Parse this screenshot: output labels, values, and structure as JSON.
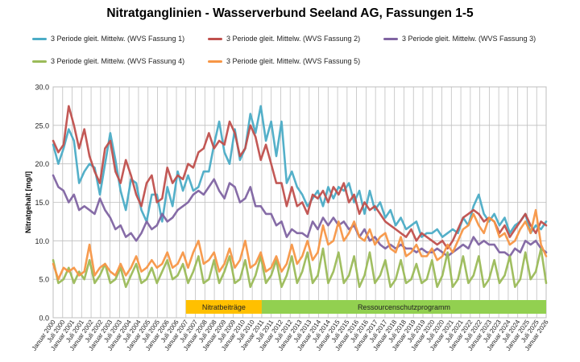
{
  "chart_data": {
    "type": "line",
    "title": "Nitratganglinien - Wasserverbund Seeland AG, Fassungen 1-5",
    "ylabel": "Nitratgehalt [mg/l]",
    "ylim": [
      0,
      30
    ],
    "yticks": [
      "0.0",
      "5.0",
      "10.0",
      "15.0",
      "20.0",
      "25.0",
      "30.0"
    ],
    "grid": true,
    "legend_position": "top",
    "xlabels": [
      "Januar 2000",
      "Juli 2000",
      "Januar 2001",
      "Juli 2001",
      "Januar 2002",
      "Juli 2002",
      "Januar 2003",
      "Juli 2003",
      "Januar 2004",
      "Juli 2004",
      "Januar 2005",
      "Juli 2005",
      "Januar 2006",
      "Juli 2006",
      "Januar 2007",
      "Juli 2007",
      "Januar 2008",
      "Juli 2008",
      "Januar 2009",
      "Juli 2009",
      "Januar 2010",
      "Juli 2010",
      "Januar 2011",
      "Juli 2011",
      "Januar 2012",
      "Juli 2012",
      "Januar 2013",
      "Juli 2013",
      "Januar 2014",
      "Juli 2014",
      "Januar 2015",
      "Juli 2015",
      "Januar 2016",
      "Juli 2016",
      "Januar 2017",
      "Juli 2017",
      "Januar 2018",
      "Juli 2018",
      "Januar 2019",
      "Juli 2019",
      "Januar 2020",
      "Juli 2020",
      "Januar 2021",
      "Juli 2021",
      "Januar 2022",
      "Juli 2022",
      "Januar 2023",
      "Juli 2023",
      "Januar 2024",
      "Juli 2024",
      "Januar 2025",
      "Juli 2025",
      "Januar 2026"
    ],
    "bands": [
      {
        "label": "Nitratbeiträge",
        "from": "Januar 2007",
        "to": "Januar 2011",
        "color": "#ffc000"
      },
      {
        "label": "Ressourcenschutzprogramm",
        "from": "Januar 2011",
        "to": "Januar 2026",
        "color": "#92d050"
      }
    ],
    "series": [
      {
        "name": "3 Periode gleit. Mittelw. (WVS Fassung 1)",
        "color": "#4bacc6",
        "values": [
          22.5,
          20.0,
          22.0,
          24.5,
          23.0,
          17.5,
          19.0,
          20.0,
          19.5,
          16.0,
          20.0,
          24.0,
          20.5,
          16.5,
          14.0,
          18.0,
          17.5,
          14.0,
          12.5,
          16.0,
          16.0,
          12.5,
          17.0,
          14.5,
          19.0,
          16.5,
          18.5,
          16.5,
          17.0,
          19.0,
          19.0,
          22.5,
          25.5,
          21.5,
          20.0,
          24.5,
          20.5,
          22.0,
          26.5,
          24.0,
          27.5,
          23.0,
          25.5,
          21.0,
          25.5,
          17.5,
          19.0,
          17.0,
          16.0,
          14.5,
          15.5,
          16.5,
          14.5,
          17.0,
          15.5,
          17.0,
          16.5,
          17.5,
          15.0,
          16.5,
          13.5,
          16.5,
          14.0,
          15.0,
          13.0,
          14.0,
          12.0,
          13.0,
          11.5,
          12.0,
          12.5,
          10.5,
          11.0,
          11.0,
          11.5,
          10.5,
          11.0,
          11.5,
          11.0,
          13.0,
          12.0,
          14.5,
          16.0,
          13.5,
          12.5,
          13.5,
          12.0,
          13.0,
          11.0,
          12.0,
          12.5,
          13.5,
          11.0,
          12.0,
          11.5,
          12.5
        ]
      },
      {
        "name": "3 Periode gleit. Mittelw. (WVS Fassung 2)",
        "color": "#c0504d",
        "values": [
          23.0,
          21.5,
          22.5,
          27.5,
          25.0,
          22.0,
          24.5,
          21.0,
          19.0,
          17.5,
          22.0,
          23.0,
          19.0,
          17.5,
          20.5,
          18.5,
          16.0,
          14.5,
          17.5,
          18.5,
          15.0,
          15.5,
          19.5,
          17.5,
          18.5,
          18.0,
          20.0,
          19.5,
          21.5,
          22.0,
          24.0,
          22.0,
          23.0,
          22.5,
          25.5,
          24.0,
          21.0,
          22.0,
          25.0,
          23.5,
          20.5,
          22.5,
          20.0,
          17.5,
          17.5,
          14.5,
          17.0,
          14.5,
          15.0,
          13.5,
          16.0,
          15.5,
          16.5,
          15.0,
          17.0,
          16.0,
          17.5,
          15.0,
          16.0,
          13.5,
          15.0,
          14.0,
          14.5,
          13.5,
          12.5,
          12.0,
          11.5,
          11.0,
          10.5,
          11.5,
          10.0,
          11.0,
          10.5,
          10.0,
          9.5,
          10.0,
          9.0,
          10.0,
          11.5,
          13.0,
          13.5,
          14.0,
          13.5,
          12.5,
          13.0,
          12.5,
          11.0,
          12.0,
          10.5,
          11.5,
          12.5,
          13.5,
          12.0,
          11.0,
          12.5,
          12.0
        ]
      },
      {
        "name": "3 Periode gleit. Mittelw. (WVS Fassung 3)",
        "color": "#8064a2",
        "values": [
          18.5,
          17.0,
          16.5,
          15.0,
          16.0,
          14.0,
          14.5,
          14.0,
          13.5,
          15.5,
          14.0,
          13.0,
          11.5,
          12.0,
          10.5,
          11.0,
          10.0,
          11.0,
          12.5,
          11.5,
          12.0,
          13.5,
          12.5,
          13.0,
          14.0,
          14.5,
          15.0,
          16.0,
          16.5,
          16.0,
          17.0,
          18.0,
          16.5,
          15.5,
          17.5,
          17.0,
          15.0,
          15.5,
          17.0,
          14.5,
          14.5,
          13.5,
          13.5,
          12.0,
          12.5,
          10.5,
          11.5,
          11.0,
          11.0,
          10.5,
          12.5,
          11.5,
          13.0,
          12.0,
          13.0,
          12.0,
          12.5,
          11.5,
          12.0,
          10.5,
          11.5,
          10.0,
          10.5,
          9.5,
          9.0,
          9.5,
          9.0,
          9.5,
          9.0,
          9.0,
          8.5,
          9.0,
          8.5,
          8.5,
          9.0,
          8.5,
          8.0,
          8.5,
          9.0,
          9.5,
          9.0,
          10.5,
          9.5,
          10.0,
          9.5,
          9.5,
          8.5,
          8.5,
          8.0,
          9.0,
          8.5,
          10.0,
          9.5,
          10.0,
          9.0,
          8.5
        ]
      },
      {
        "name": "3 Periode gleit. Mittelw. (WVS Fassung 4)",
        "color": "#9bbb59",
        "values": [
          7.5,
          4.5,
          5.0,
          6.5,
          4.5,
          6.0,
          5.0,
          7.5,
          4.5,
          5.5,
          7.0,
          4.5,
          5.0,
          6.5,
          4.0,
          5.5,
          7.0,
          4.5,
          5.0,
          6.5,
          4.5,
          6.0,
          7.5,
          5.0,
          5.5,
          7.0,
          4.5,
          6.0,
          8.0,
          4.5,
          5.0,
          7.5,
          4.5,
          6.0,
          8.0,
          4.5,
          5.0,
          7.5,
          4.0,
          5.5,
          8.0,
          4.5,
          5.5,
          7.5,
          4.0,
          5.5,
          8.0,
          4.5,
          6.0,
          8.5,
          4.5,
          5.5,
          9.0,
          4.5,
          6.0,
          8.5,
          4.5,
          5.5,
          8.0,
          4.0,
          5.5,
          8.5,
          4.5,
          5.5,
          7.5,
          4.0,
          5.0,
          7.5,
          4.5,
          5.0,
          7.0,
          4.5,
          5.0,
          7.5,
          4.0,
          5.5,
          8.5,
          4.0,
          5.0,
          8.0,
          4.5,
          5.5,
          8.0,
          4.0,
          5.0,
          7.5,
          4.5,
          5.5,
          8.0,
          4.0,
          5.0,
          8.5,
          5.0,
          6.0,
          9.0,
          4.5
        ]
      },
      {
        "name": "3 Periode gleit. Mittelw. (WVS Fassung 5)",
        "color": "#f79646",
        "values": [
          7.0,
          5.0,
          6.5,
          6.0,
          6.5,
          5.5,
          6.0,
          9.5,
          5.5,
          6.5,
          7.0,
          6.0,
          5.5,
          7.0,
          5.5,
          6.5,
          8.0,
          6.0,
          6.5,
          7.5,
          6.5,
          7.0,
          8.5,
          6.5,
          7.0,
          8.5,
          6.5,
          8.5,
          10.0,
          7.0,
          7.5,
          8.5,
          6.0,
          7.0,
          9.0,
          6.5,
          7.5,
          10.0,
          6.5,
          7.0,
          8.5,
          6.0,
          6.5,
          8.0,
          6.0,
          7.0,
          9.5,
          7.0,
          8.0,
          10.0,
          7.5,
          8.5,
          12.0,
          9.5,
          10.0,
          12.5,
          10.0,
          11.0,
          12.5,
          10.5,
          10.0,
          11.5,
          9.5,
          10.5,
          11.0,
          9.0,
          8.5,
          10.5,
          8.0,
          8.5,
          9.5,
          8.0,
          8.0,
          9.0,
          7.5,
          8.0,
          9.5,
          8.5,
          10.0,
          11.5,
          12.0,
          13.5,
          12.0,
          11.0,
          13.0,
          12.5,
          10.5,
          11.0,
          9.5,
          10.0,
          11.5,
          12.5,
          11.0,
          14.0,
          9.5,
          8.0
        ]
      }
    ]
  }
}
